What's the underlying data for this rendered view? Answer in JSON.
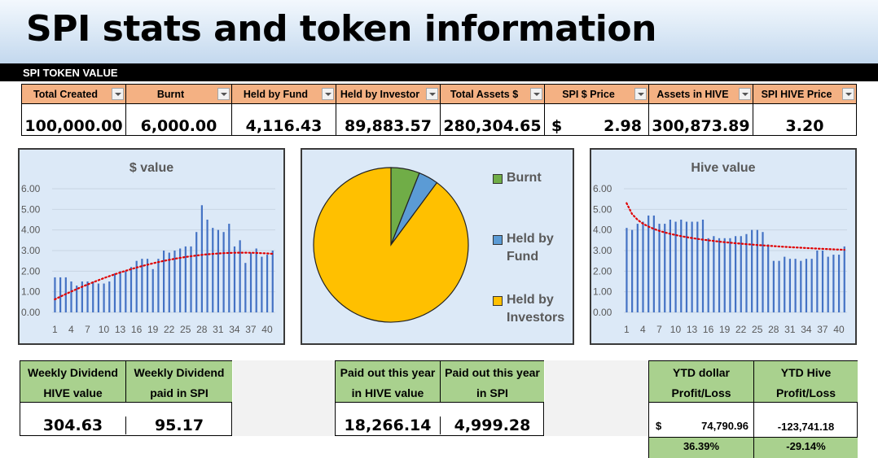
{
  "title": "SPI stats and token information",
  "section_label": "SPI TOKEN VALUE",
  "stats": {
    "headers": [
      "Total Created",
      "Burnt",
      "Held by Fund",
      "Held by Investor",
      "Total Assets $",
      "SPI $ Price",
      "Assets in HIVE",
      "SPI HIVE Price"
    ],
    "values": [
      "100,000.00",
      "6,000.00",
      "4,116.43",
      "89,883.57",
      "280,304.65",
      "2.98",
      "300,873.89",
      "3.20"
    ],
    "currency_symbol": "$"
  },
  "chart_data": [
    {
      "type": "bar",
      "title": "$ value",
      "ylim": [
        0,
        6
      ],
      "y_ticks": [
        "0.00",
        "1.00",
        "2.00",
        "3.00",
        "4.00",
        "5.00",
        "6.00"
      ],
      "x_ticks": [
        "1",
        "4",
        "7",
        "10",
        "13",
        "16",
        "19",
        "22",
        "25",
        "28",
        "31",
        "34",
        "37",
        "40"
      ],
      "x": [
        1,
        2,
        3,
        4,
        5,
        6,
        7,
        8,
        9,
        10,
        11,
        12,
        13,
        14,
        15,
        16,
        17,
        18,
        19,
        20,
        21,
        22,
        23,
        24,
        25,
        26,
        27,
        28,
        29,
        30,
        31,
        32,
        33,
        34,
        35,
        36,
        37,
        38,
        39,
        40,
        41
      ],
      "values": [
        1.7,
        1.7,
        1.7,
        1.5,
        1.3,
        1.5,
        1.5,
        1.5,
        1.4,
        1.4,
        1.5,
        1.9,
        2.0,
        2.0,
        2.2,
        2.5,
        2.6,
        2.6,
        2.1,
        2.6,
        3.0,
        2.9,
        3.0,
        3.1,
        3.2,
        3.2,
        3.9,
        5.2,
        4.5,
        4.1,
        4.0,
        3.9,
        4.3,
        3.2,
        3.5,
        2.4,
        2.9,
        3.1,
        2.7,
        2.8,
        3.0
      ],
      "trendline": "polynomial",
      "bar_color": "#4472c4",
      "trend_color": "#e00000",
      "grid": true
    },
    {
      "type": "pie",
      "labels": [
        "Burnt",
        "Held by Fund",
        "Held by Investors"
      ],
      "values": [
        6000.0,
        4116.43,
        89883.57
      ],
      "colors": [
        "#70ad47",
        "#5b9bd5",
        "#ffc000"
      ],
      "legend": "right"
    },
    {
      "type": "bar",
      "title": "Hive value",
      "ylim": [
        0,
        6
      ],
      "y_ticks": [
        "0.00",
        "1.00",
        "2.00",
        "3.00",
        "4.00",
        "5.00",
        "6.00"
      ],
      "x_ticks": [
        "1",
        "4",
        "7",
        "10",
        "13",
        "16",
        "19",
        "22",
        "25",
        "28",
        "31",
        "34",
        "37",
        "40"
      ],
      "x": [
        1,
        2,
        3,
        4,
        5,
        6,
        7,
        8,
        9,
        10,
        11,
        12,
        13,
        14,
        15,
        16,
        17,
        18,
        19,
        20,
        21,
        22,
        23,
        24,
        25,
        26,
        27,
        28,
        29,
        30,
        31,
        32,
        33,
        34,
        35,
        36,
        37,
        38,
        39,
        40,
        41
      ],
      "values": [
        4.1,
        4.0,
        4.3,
        4.4,
        4.7,
        4.7,
        4.3,
        4.3,
        4.5,
        4.4,
        4.5,
        4.4,
        4.4,
        4.4,
        4.5,
        3.6,
        3.7,
        3.6,
        3.6,
        3.6,
        3.7,
        3.7,
        3.8,
        4.0,
        4.0,
        3.9,
        3.3,
        2.5,
        2.5,
        2.7,
        2.6,
        2.6,
        2.5,
        2.6,
        2.6,
        3.0,
        3.0,
        2.7,
        2.8,
        2.8,
        3.2
      ],
      "trendline": "power",
      "bar_color": "#4472c4",
      "trend_color": "#e00000",
      "grid": true
    }
  ],
  "dividend": {
    "h1": "Weekly Dividend HIVE value",
    "h2": "Weekly Dividend paid in SPI",
    "v1": "304.63",
    "v2": "95.17"
  },
  "paid_out": {
    "h1": "Paid out this year in HIVE value",
    "h2": "Paid out this year in SPI",
    "v1": "18,266.14",
    "v2": "4,999.28"
  },
  "ytd": {
    "h1": "YTD dollar Profit/Loss",
    "h2": "YTD Hive Profit/Loss",
    "currency": "$",
    "v1": "74,790.96",
    "v2": "-123,741.18",
    "p1": "36.39%",
    "p2": "-29.14%"
  }
}
